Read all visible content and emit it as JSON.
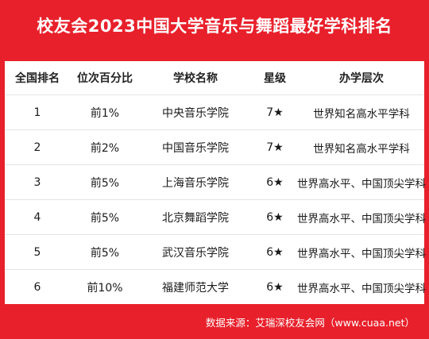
{
  "title": "校友会2023中国大学音乐与舞蹈最好学科排名",
  "table": {
    "headers": [
      "全国排名",
      "位次百分比",
      "学校名称",
      "星级",
      "办学层次"
    ],
    "rows": [
      {
        "rank": "1",
        "percentile": "前1%",
        "school": "中央音乐学院",
        "stars": "7★",
        "level": "世界知名高水平学科"
      },
      {
        "rank": "2",
        "percentile": "前2%",
        "school": "中国音乐学院",
        "stars": "7★",
        "level": "世界知名高水平学科"
      },
      {
        "rank": "3",
        "percentile": "前5%",
        "school": "上海音乐学院",
        "stars": "6★",
        "level": "世界高水平、中国顶尖学科"
      },
      {
        "rank": "4",
        "percentile": "前5%",
        "school": "北京舞蹈学院",
        "stars": "6★",
        "level": "世界高水平、中国顶尖学科"
      },
      {
        "rank": "5",
        "percentile": "前5%",
        "school": "武汉音乐学院",
        "stars": "6★",
        "level": "世界高水平、中国顶尖学科"
      },
      {
        "rank": "6",
        "percentile": "前10%",
        "school": "福建师范大学",
        "stars": "6★",
        "level": "世界高水平、中国顶尖学科"
      }
    ]
  },
  "source": "数据来源：艾瑞深校友会网（www.cuaa.net）",
  "colors": {
    "background": "#e8202b",
    "panel": "#ffffff",
    "title_text": "#ffffff"
  }
}
